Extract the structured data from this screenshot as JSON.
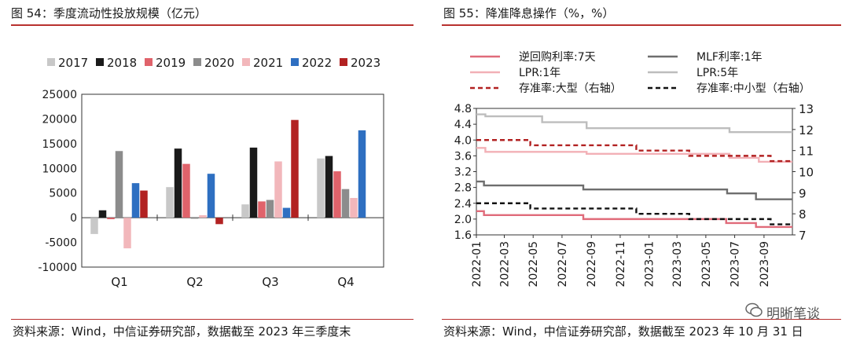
{
  "left": {
    "title": "图 54：季度流动性投放规模（亿元）",
    "source": "资料来源：Wind，中信证券研究部，数据截至 2023 年三季度末"
  },
  "right": {
    "title": "图 55：降准降息操作（%，%）",
    "source": "资料来源：Wind，中信证券研究部，数据截至 2023 年 10 月 31 日"
  },
  "watermark": "明晰笔谈",
  "colors": {
    "title_rule": "#b8312f",
    "s2017": "#c8c8c8",
    "s2018": "#1a1a1a",
    "s2019": "#e0636b",
    "s2020": "#8c8c8c",
    "s2021": "#f2b7bb",
    "s2022": "#2e6fc1",
    "s2023": "#b22222"
  },
  "chart_data": [
    {
      "type": "bar",
      "categories": [
        "Q1",
        "Q2",
        "Q3",
        "Q4"
      ],
      "ylim": [
        -10000,
        25000
      ],
      "yticks": [
        -10000,
        -5000,
        0,
        5000,
        10000,
        15000,
        20000,
        25000
      ],
      "series": [
        {
          "name": "2017",
          "color": "#c8c8c8",
          "values": [
            -3300,
            6200,
            2700,
            12000
          ]
        },
        {
          "name": "2018",
          "color": "#1a1a1a",
          "values": [
            1500,
            14000,
            14200,
            12500
          ]
        },
        {
          "name": "2019",
          "color": "#e0636b",
          "values": [
            -300,
            10900,
            3300,
            9400
          ]
        },
        {
          "name": "2020",
          "color": "#8c8c8c",
          "values": [
            13500,
            -200,
            3600,
            5800
          ]
        },
        {
          "name": "2021",
          "color": "#f2b7bb",
          "values": [
            -6200,
            500,
            11400,
            4000
          ]
        },
        {
          "name": "2022",
          "color": "#2e6fc1",
          "values": [
            7000,
            8900,
            2000,
            17700
          ]
        },
        {
          "name": "2023",
          "color": "#b22222",
          "values": [
            5500,
            -1300,
            19800,
            null
          ]
        }
      ]
    },
    {
      "type": "line",
      "x_labels": [
        "2022-01",
        "2022-03",
        "2022-05",
        "2022-07",
        "2022-09",
        "2022-11",
        "2023-01",
        "2023-03",
        "2023-05",
        "2023-07",
        "2023-09"
      ],
      "x_range": [
        "2022-01",
        "2023-10"
      ],
      "ylim_left": [
        1.6,
        4.8
      ],
      "yticks_left": [
        "1.6",
        "2.0",
        "2.4",
        "2.8",
        "3.2",
        "3.6",
        "4.0",
        "4.4",
        "4.8"
      ],
      "ylim_right": [
        7,
        13
      ],
      "yticks_right": [
        "7",
        "8",
        "9",
        "10",
        "11",
        "12",
        "13"
      ],
      "series": [
        {
          "name": "逆回购利率:7天",
          "axis": "left",
          "color": "#e06b7a",
          "dash": false,
          "steps": [
            [
              "2022-01",
              2.2
            ],
            [
              "2022-01-17",
              2.1
            ],
            [
              "2022-08-15",
              2.0
            ],
            [
              "2023-06-13",
              1.9
            ],
            [
              "2023-08-15",
              1.8
            ],
            [
              "2023-10-31",
              1.8
            ]
          ]
        },
        {
          "name": "MLF利率:1年",
          "axis": "left",
          "color": "#6e6e6e",
          "dash": false,
          "steps": [
            [
              "2022-01",
              2.95
            ],
            [
              "2022-01-17",
              2.85
            ],
            [
              "2022-08-15",
              2.75
            ],
            [
              "2023-06-15",
              2.65
            ],
            [
              "2023-08-15",
              2.5
            ],
            [
              "2023-10-31",
              2.5
            ]
          ]
        },
        {
          "name": "LPR:1年",
          "axis": "left",
          "color": "#f2b0b6",
          "dash": false,
          "steps": [
            [
              "2022-01",
              3.8
            ],
            [
              "2022-01-20",
              3.7
            ],
            [
              "2022-08-22",
              3.65
            ],
            [
              "2023-06-20",
              3.55
            ],
            [
              "2023-08-21",
              3.45
            ],
            [
              "2023-10-31",
              3.45
            ]
          ]
        },
        {
          "name": "LPR:5年",
          "axis": "left",
          "color": "#bdbdbd",
          "dash": false,
          "steps": [
            [
              "2022-01",
              4.65
            ],
            [
              "2022-01-20",
              4.6
            ],
            [
              "2022-05-20",
              4.45
            ],
            [
              "2022-08-22",
              4.3
            ],
            [
              "2023-06-20",
              4.2
            ],
            [
              "2023-10-31",
              4.2
            ]
          ]
        },
        {
          "name": "存准率:大型（右轴）",
          "axis": "right",
          "color": "#b22222",
          "dash": true,
          "steps": [
            [
              "2022-01",
              11.5
            ],
            [
              "2022-04-25",
              11.25
            ],
            [
              "2022-12-05",
              11.0
            ],
            [
              "2023-03-27",
              10.75
            ],
            [
              "2023-09-15",
              10.5
            ],
            [
              "2023-10-31",
              10.5
            ]
          ]
        },
        {
          "name": "存准率:中小型（右轴）",
          "axis": "right",
          "color": "#111111",
          "dash": true,
          "steps": [
            [
              "2022-01",
              8.5
            ],
            [
              "2022-04-25",
              8.25
            ],
            [
              "2022-12-05",
              8.0
            ],
            [
              "2023-03-27",
              7.75
            ],
            [
              "2023-09-15",
              7.5
            ],
            [
              "2023-10-31",
              7.5
            ]
          ]
        }
      ]
    }
  ]
}
